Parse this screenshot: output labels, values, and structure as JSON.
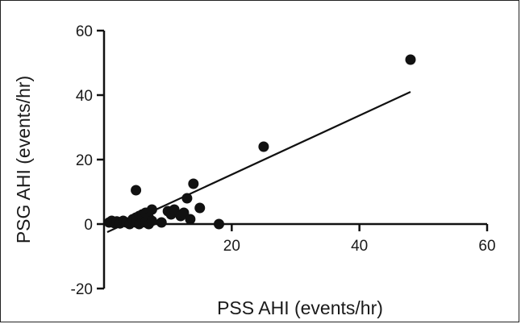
{
  "chart_data": {
    "type": "scatter",
    "title": "",
    "xlabel": "PSS AHI (events/hr)",
    "ylabel": "PSG AHI (events/hr)",
    "xlim": [
      0,
      60
    ],
    "ylim": [
      -20,
      60
    ],
    "x_ticks": [
      "20",
      "40",
      "60"
    ],
    "y_ticks": [
      "-20",
      "0",
      "20",
      "40",
      "60"
    ],
    "grid": false,
    "legend": "none",
    "point_color": "#111111",
    "line_color": "#111111",
    "series": [
      {
        "x": [
          0.8,
          1.2,
          1.6,
          2.0,
          2.5,
          3.0,
          3.5,
          4.0,
          4.5,
          5.0,
          5.0,
          5.5,
          5.5,
          6.0,
          6.0,
          6.5,
          6.5,
          7.0,
          7.0,
          7.5,
          7.5,
          5.0,
          9.0,
          10.0,
          10.5,
          11.0,
          12.0,
          12.5,
          13.0,
          13.5,
          14.0,
          15.0,
          18.0,
          25.0,
          48.0
        ],
        "y": [
          0.5,
          1.0,
          0.3,
          0.8,
          0.2,
          1.0,
          0.5,
          0.0,
          1.5,
          0.5,
          2.0,
          0.0,
          2.5,
          1.0,
          3.0,
          0.5,
          3.5,
          0.0,
          2.0,
          1.0,
          4.5,
          10.5,
          0.5,
          4.0,
          3.0,
          4.5,
          2.5,
          3.5,
          8.0,
          1.5,
          12.5,
          5.0,
          0.0,
          24.0,
          51.0
        ]
      }
    ],
    "fit_line": {
      "x": [
        0.5,
        48.0
      ],
      "y": [
        -2.5,
        41.0
      ]
    }
  }
}
